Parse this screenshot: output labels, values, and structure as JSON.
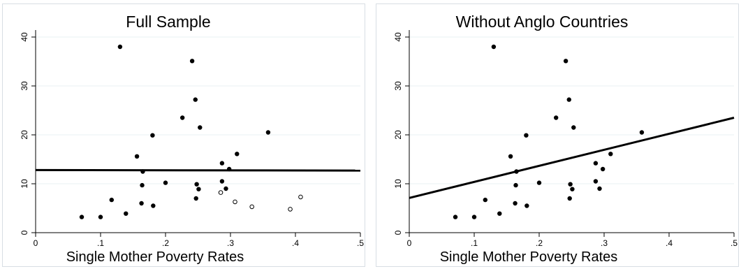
{
  "chart_data": [
    {
      "type": "scatter",
      "title": "Full Sample",
      "xlabel": "Single Mother Poverty Rates",
      "ylabel": "",
      "xlim": [
        0,
        0.5
      ],
      "ylim": [
        0,
        40
      ],
      "x_ticks": [
        "0",
        ".1",
        ".2",
        ".3",
        ".4",
        ".5"
      ],
      "y_ticks": [
        "0",
        "10",
        "20",
        "30",
        "40"
      ],
      "grid": "horizontal",
      "series": [
        {
          "marker": "filled",
          "points": [
            [
              0.071,
              3.2
            ],
            [
              0.1,
              3.2
            ],
            [
              0.117,
              6.7
            ],
            [
              0.13,
              38.0
            ],
            [
              0.139,
              3.9
            ],
            [
              0.156,
              15.6
            ],
            [
              0.163,
              6.0
            ],
            [
              0.164,
              9.7
            ],
            [
              0.165,
              12.5
            ],
            [
              0.181,
              5.5
            ],
            [
              0.18,
              19.9
            ],
            [
              0.2,
              10.2
            ],
            [
              0.226,
              23.5
            ],
            [
              0.241,
              35.1
            ],
            [
              0.246,
              27.2
            ],
            [
              0.247,
              7.0
            ],
            [
              0.248,
              9.9
            ],
            [
              0.251,
              8.9
            ],
            [
              0.253,
              21.5
            ],
            [
              0.287,
              14.2
            ],
            [
              0.287,
              10.5
            ],
            [
              0.293,
              9.0
            ],
            [
              0.298,
              13.0
            ],
            [
              0.31,
              16.1
            ],
            [
              0.358,
              20.5
            ]
          ]
        },
        {
          "marker": "hollow",
          "points": [
            [
              0.285,
              8.2
            ],
            [
              0.307,
              6.3
            ],
            [
              0.333,
              5.3
            ],
            [
              0.392,
              4.8
            ],
            [
              0.408,
              7.3
            ]
          ]
        }
      ],
      "fit_line": {
        "x": [
          0,
          0.5
        ],
        "y": [
          12.8,
          12.7
        ]
      }
    },
    {
      "type": "scatter",
      "title": "Without Anglo Countries",
      "xlabel": "Single Mother Poverty Rates",
      "ylabel": "",
      "xlim": [
        0,
        0.5
      ],
      "ylim": [
        0,
        40
      ],
      "x_ticks": [
        "0",
        ".1",
        ".2",
        ".3",
        ".4",
        ".5"
      ],
      "y_ticks": [
        "0",
        "10",
        "20",
        "30",
        "40"
      ],
      "grid": "horizontal",
      "series": [
        {
          "marker": "filled",
          "points": [
            [
              0.071,
              3.2
            ],
            [
              0.1,
              3.2
            ],
            [
              0.117,
              6.7
            ],
            [
              0.13,
              38.0
            ],
            [
              0.139,
              3.9
            ],
            [
              0.156,
              15.6
            ],
            [
              0.163,
              6.0
            ],
            [
              0.164,
              9.7
            ],
            [
              0.165,
              12.5
            ],
            [
              0.181,
              5.5
            ],
            [
              0.18,
              19.9
            ],
            [
              0.2,
              10.2
            ],
            [
              0.226,
              23.5
            ],
            [
              0.241,
              35.1
            ],
            [
              0.246,
              27.2
            ],
            [
              0.247,
              7.0
            ],
            [
              0.248,
              9.9
            ],
            [
              0.251,
              8.9
            ],
            [
              0.253,
              21.5
            ],
            [
              0.287,
              14.2
            ],
            [
              0.287,
              10.5
            ],
            [
              0.293,
              9.0
            ],
            [
              0.298,
              13.0
            ],
            [
              0.31,
              16.1
            ],
            [
              0.358,
              20.5
            ]
          ]
        }
      ],
      "fit_line": {
        "x": [
          0,
          0.5
        ],
        "y": [
          7.1,
          23.5
        ]
      }
    }
  ]
}
